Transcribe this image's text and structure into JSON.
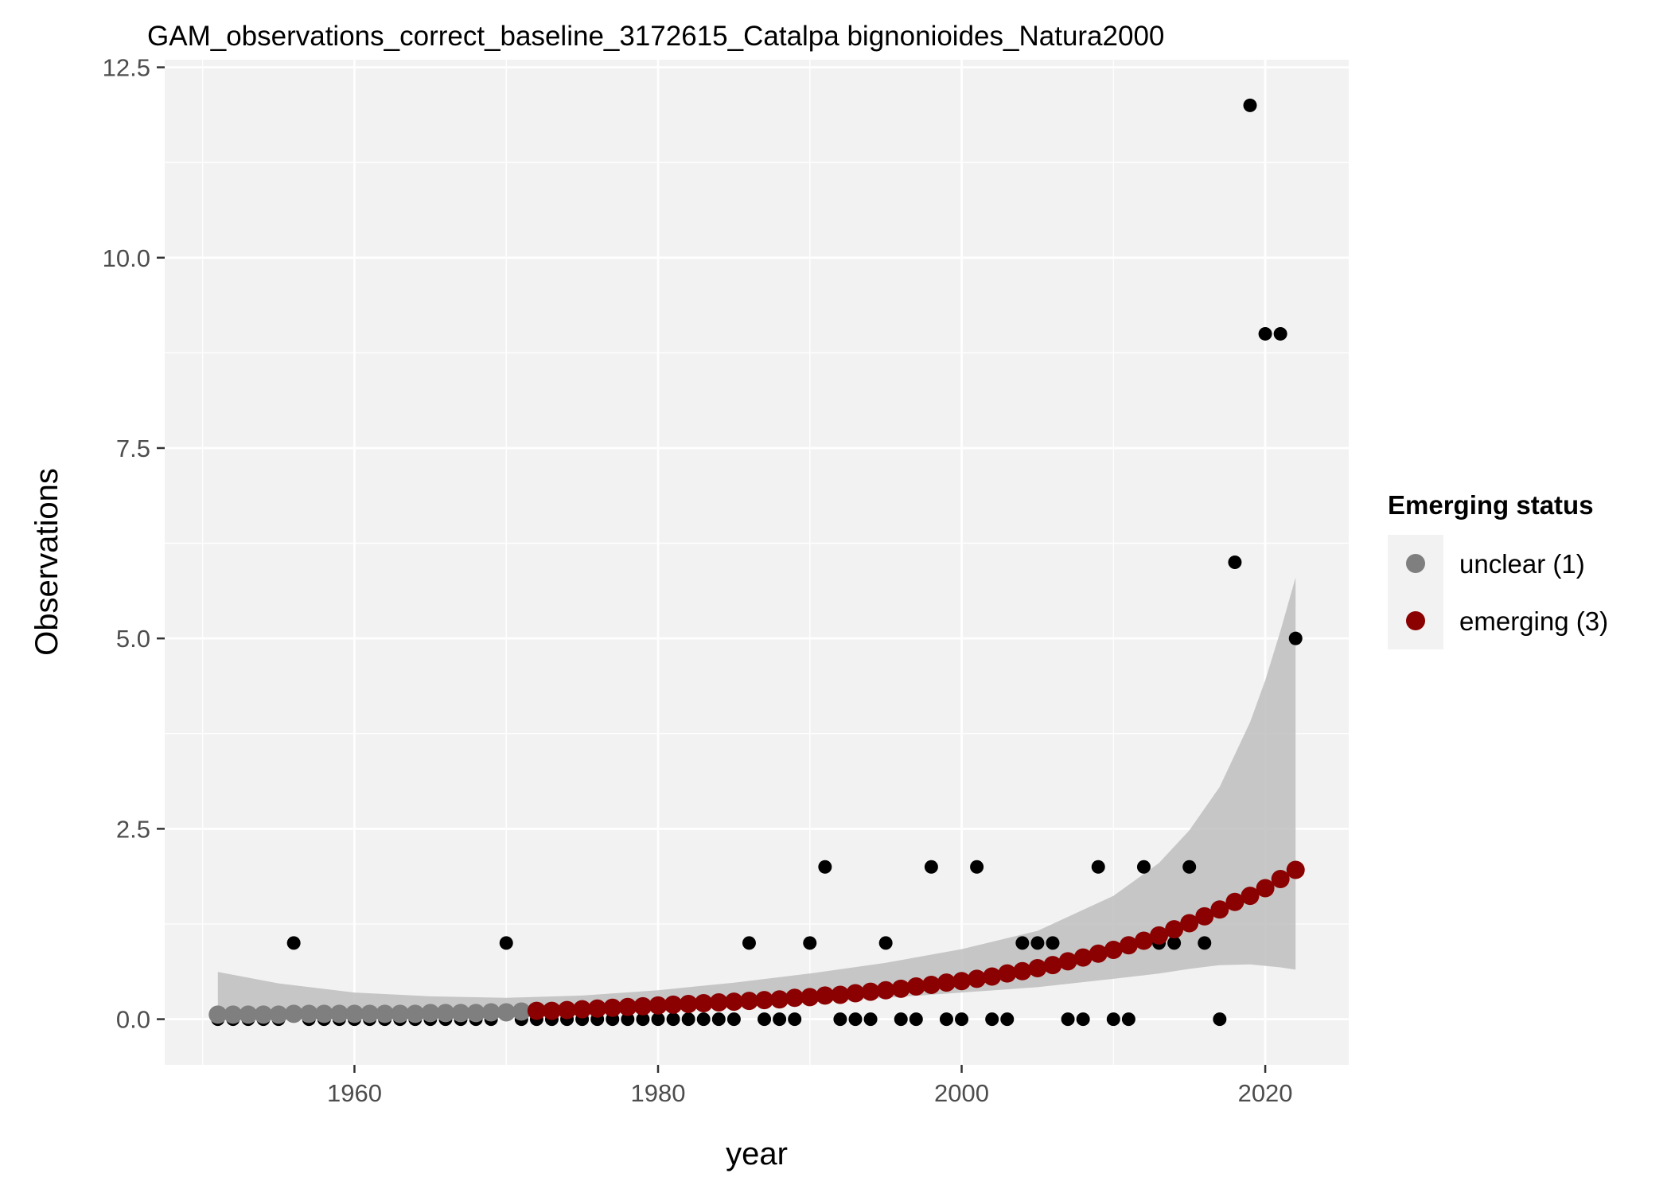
{
  "chart_data": {
    "type": "scatter",
    "title": "GAM_observations_correct_baseline_3172615_Catalpa bignonioides_Natura2000",
    "xlabel": "year",
    "ylabel": "Observations",
    "xlim": [
      1947.5,
      2025.5
    ],
    "ylim": [
      -0.6,
      12.6
    ],
    "x_ticks": [
      1960,
      1980,
      2000,
      2020
    ],
    "x_minor_ticks": [
      1950,
      1970,
      1990,
      2010
    ],
    "y_ticks": [
      0.0,
      2.5,
      5.0,
      7.5,
      10.0,
      12.5
    ],
    "y_tick_labels": [
      "0.0",
      "2.5",
      "5.0",
      "7.5",
      "10.0",
      "12.5"
    ],
    "y_minor_ticks": [
      1.25,
      3.75,
      6.25,
      8.75,
      11.25
    ],
    "grid": true,
    "colors": {
      "panel": "#f2f2f2",
      "grid": "#ffffff",
      "observed": "#000000",
      "ribbon": "#bebebe",
      "unclear": "#7f7f7f",
      "emerging": "#8b0000"
    },
    "legend": {
      "title": "Emerging status",
      "position": "right",
      "entries": [
        {
          "label": "unclear (1)",
          "color": "#7f7f7f"
        },
        {
          "label": "emerging (3)",
          "color": "#8b0000"
        }
      ]
    },
    "series": [
      {
        "role": "observed",
        "x": [
          1951,
          1952,
          1953,
          1954,
          1955,
          1956,
          1957,
          1958,
          1959,
          1960,
          1961,
          1962,
          1963,
          1964,
          1965,
          1966,
          1967,
          1968,
          1969,
          1970,
          1971,
          1972,
          1973,
          1974,
          1975,
          1976,
          1977,
          1978,
          1979,
          1980,
          1981,
          1982,
          1983,
          1984,
          1985,
          1986,
          1987,
          1988,
          1989,
          1990,
          1991,
          1992,
          1993,
          1994,
          1995,
          1996,
          1997,
          1998,
          1999,
          2000,
          2001,
          2002,
          2003,
          2004,
          2005,
          2006,
          2007,
          2008,
          2009,
          2010,
          2011,
          2012,
          2013,
          2014,
          2015,
          2016,
          2017,
          2018,
          2019,
          2020,
          2021,
          2022
        ],
        "y": [
          0,
          0,
          0,
          0,
          0,
          1,
          0,
          0,
          0,
          0,
          0,
          0,
          0,
          0,
          0,
          0,
          0,
          0,
          0,
          1,
          0,
          0,
          0,
          0,
          0,
          0,
          0,
          0,
          0,
          0,
          0,
          0,
          0,
          0,
          0,
          1,
          0,
          0,
          0,
          1,
          2,
          0,
          0,
          0,
          1,
          0,
          0,
          2,
          0,
          0,
          2,
          0,
          0,
          1,
          1,
          1,
          0,
          0,
          2,
          0,
          0,
          2,
          1,
          1,
          2,
          1,
          0,
          6,
          12,
          9,
          9,
          5
        ]
      },
      {
        "role": "fitted",
        "x": [
          1951,
          1952,
          1953,
          1954,
          1955,
          1956,
          1957,
          1958,
          1959,
          1960,
          1961,
          1962,
          1963,
          1964,
          1965,
          1966,
          1967,
          1968,
          1969,
          1970,
          1971,
          1972,
          1973,
          1974,
          1975,
          1976,
          1977,
          1978,
          1979,
          1980,
          1981,
          1982,
          1983,
          1984,
          1985,
          1986,
          1987,
          1988,
          1989,
          1990,
          1991,
          1992,
          1993,
          1994,
          1995,
          1996,
          1997,
          1998,
          1999,
          2000,
          2001,
          2002,
          2003,
          2004,
          2005,
          2006,
          2007,
          2008,
          2009,
          2010,
          2011,
          2012,
          2013,
          2014,
          2015,
          2016,
          2017,
          2018,
          2019,
          2020,
          2021,
          2022
        ],
        "y": [
          0.06,
          0.06,
          0.06,
          0.06,
          0.06,
          0.07,
          0.07,
          0.07,
          0.07,
          0.07,
          0.07,
          0.07,
          0.07,
          0.07,
          0.08,
          0.08,
          0.08,
          0.08,
          0.09,
          0.09,
          0.1,
          0.11,
          0.11,
          0.12,
          0.13,
          0.14,
          0.15,
          0.16,
          0.17,
          0.18,
          0.19,
          0.2,
          0.21,
          0.22,
          0.23,
          0.24,
          0.25,
          0.26,
          0.28,
          0.29,
          0.31,
          0.32,
          0.34,
          0.36,
          0.38,
          0.4,
          0.43,
          0.45,
          0.48,
          0.5,
          0.53,
          0.56,
          0.6,
          0.63,
          0.67,
          0.71,
          0.76,
          0.81,
          0.86,
          0.91,
          0.97,
          1.03,
          1.1,
          1.18,
          1.26,
          1.35,
          1.44,
          1.54,
          1.62,
          1.72,
          1.84,
          1.96
        ],
        "status": [
          "unclear",
          "unclear",
          "unclear",
          "unclear",
          "unclear",
          "unclear",
          "unclear",
          "unclear",
          "unclear",
          "unclear",
          "unclear",
          "unclear",
          "unclear",
          "unclear",
          "unclear",
          "unclear",
          "unclear",
          "unclear",
          "unclear",
          "unclear",
          "unclear",
          "emerging",
          "emerging",
          "emerging",
          "emerging",
          "emerging",
          "emerging",
          "emerging",
          "emerging",
          "emerging",
          "emerging",
          "emerging",
          "emerging",
          "emerging",
          "emerging",
          "emerging",
          "emerging",
          "emerging",
          "emerging",
          "emerging",
          "emerging",
          "emerging",
          "emerging",
          "emerging",
          "emerging",
          "emerging",
          "emerging",
          "emerging",
          "emerging",
          "emerging",
          "emerging",
          "emerging",
          "emerging",
          "emerging",
          "emerging",
          "emerging",
          "emerging",
          "emerging",
          "emerging",
          "emerging",
          "emerging",
          "emerging",
          "emerging",
          "emerging",
          "emerging",
          "emerging",
          "emerging",
          "emerging",
          "emerging",
          "emerging",
          "emerging",
          "emerging"
        ]
      }
    ],
    "ribbon": {
      "x": [
        1951,
        1955,
        1960,
        1965,
        1970,
        1975,
        1980,
        1985,
        1990,
        1995,
        2000,
        2005,
        2010,
        2013,
        2015,
        2017,
        2019,
        2020,
        2021,
        2022
      ],
      "lower": [
        0.0,
        0.0,
        0.01,
        0.02,
        0.04,
        0.08,
        0.12,
        0.17,
        0.22,
        0.28,
        0.35,
        0.42,
        0.53,
        0.6,
        0.66,
        0.71,
        0.72,
        0.7,
        0.68,
        0.65
      ],
      "upper": [
        0.62,
        0.47,
        0.35,
        0.3,
        0.28,
        0.31,
        0.38,
        0.48,
        0.6,
        0.74,
        0.92,
        1.16,
        1.62,
        2.05,
        2.48,
        3.05,
        3.9,
        4.45,
        5.1,
        5.8
      ]
    }
  }
}
